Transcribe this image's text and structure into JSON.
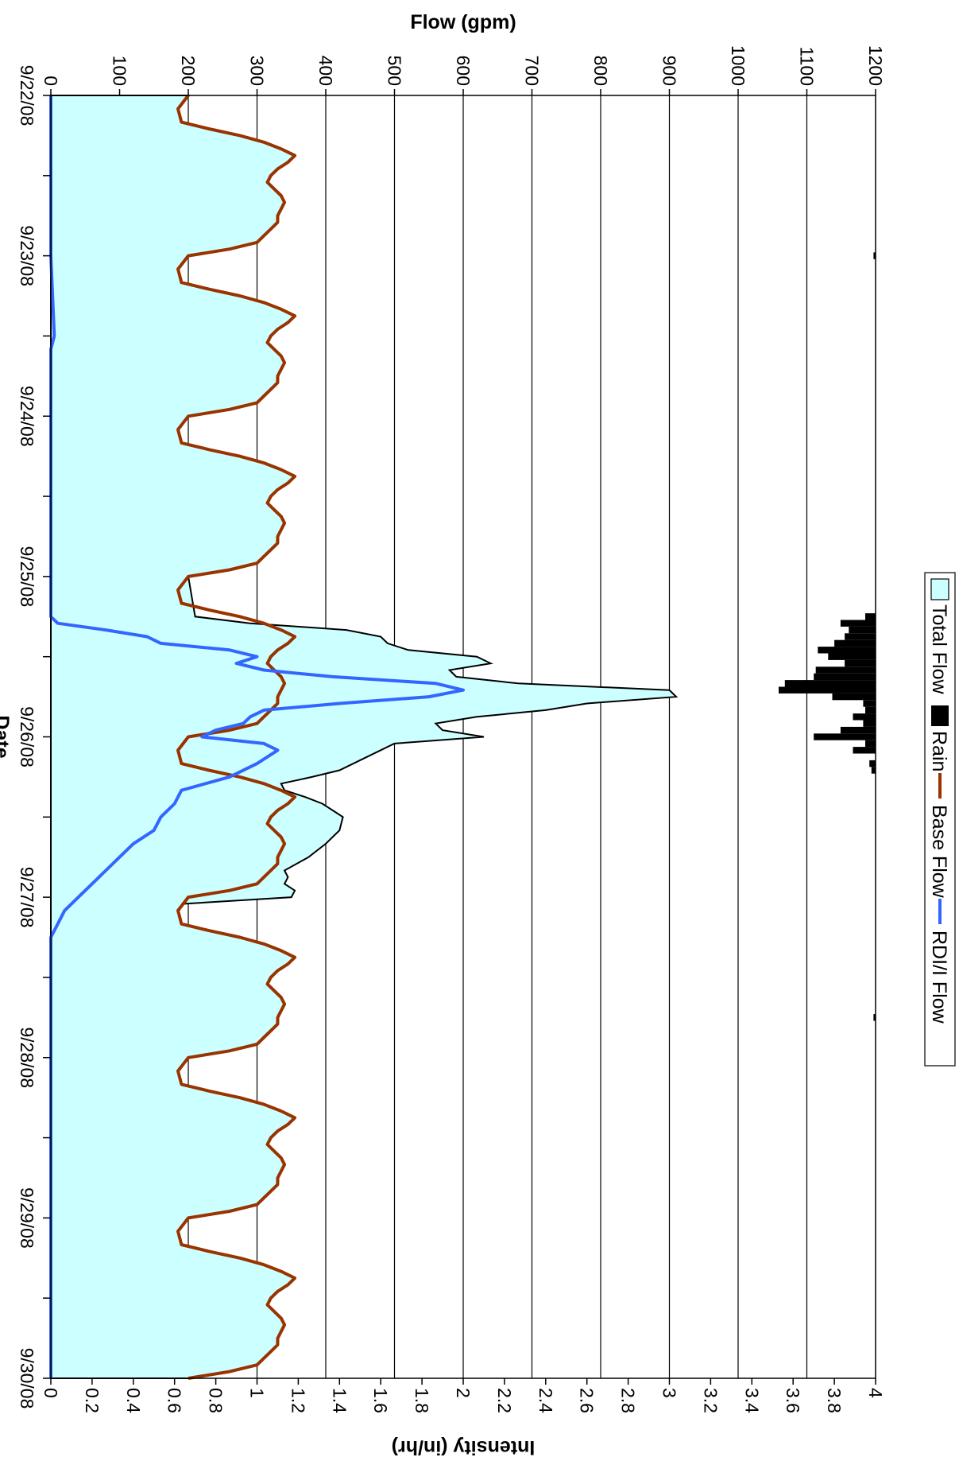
{
  "chart_data": {
    "type": "area",
    "xlabel": "Date",
    "ylabel": "Flow (gpm)",
    "y2label": "Intensity (in/hr)",
    "x_range": [
      "9/22/08",
      "9/30/08"
    ],
    "x_ticks": [
      "9/22/08",
      "9/23/08",
      "9/24/08",
      "9/25/08",
      "9/26/08",
      "9/27/08",
      "9/28/08",
      "9/29/08",
      "9/30/08"
    ],
    "ylim": [
      0,
      1200
    ],
    "y_ticks": [
      0,
      100,
      200,
      300,
      400,
      500,
      600,
      700,
      800,
      900,
      1000,
      1100,
      1200
    ],
    "y2lim": [
      0,
      4
    ],
    "y2_ticks": [
      "0",
      "0.2",
      "0.4",
      "0.6",
      "0.8",
      "1",
      "1.2",
      "1.4",
      "1.6",
      "1.8",
      "2",
      "2.2",
      "2.4",
      "2.6",
      "2.8",
      "3",
      "3.2",
      "3.4",
      "3.6",
      "3.8",
      "4"
    ],
    "grid": "horizontal",
    "legend_position": "top",
    "legend": [
      "Total Flow",
      "Rain",
      "Base Flow",
      "RDI/I Flow"
    ],
    "colors": {
      "total_fill": "#ccffff",
      "total_line": "#000000",
      "rain": "#000000",
      "base": "#993300",
      "rdii": "#3366ff",
      "grid": "#000000"
    },
    "base_flow_daily_profile": {
      "hours": [
        0,
        2,
        4,
        5,
        6,
        7,
        8,
        9,
        10,
        11,
        12,
        13,
        14,
        15,
        16,
        17,
        18,
        19,
        20,
        21,
        22,
        23,
        24
      ],
      "values": [
        200,
        185,
        190,
        230,
        275,
        310,
        335,
        355,
        345,
        330,
        320,
        315,
        325,
        335,
        340,
        335,
        330,
        330,
        320,
        310,
        300,
        260,
        200
      ]
    },
    "series": [
      {
        "name": "Total Flow",
        "x": [
          "9/25/08 00:00",
          "9/25/08 06:00",
          "9/25/08 07:00",
          "9/25/08 08:00",
          "9/25/08 09:00",
          "9/25/08 10:00",
          "9/25/08 11:00",
          "9/25/08 12:00",
          "9/25/08 13:00",
          "9/25/08 14:00",
          "9/25/08 15:00",
          "9/25/08 16:00",
          "9/25/08 17:00",
          "9/25/08 18:00",
          "9/25/08 19:00",
          "9/25/08 20:00",
          "9/25/08 21:00",
          "9/25/08 22:00",
          "9/25/08 23:00",
          "9/26/08 00:00",
          "9/26/08 01:00",
          "9/26/08 03:00",
          "9/26/08 05:00",
          "9/26/08 06:00",
          "9/26/08 07:00",
          "9/26/08 08:00",
          "9/26/08 09:00",
          "9/26/08 10:00",
          "9/26/08 11:00",
          "9/26/08 12:00",
          "9/26/08 14:00",
          "9/26/08 16:00",
          "9/26/08 18:00",
          "9/26/08 20:00",
          "9/26/08 21:00",
          "9/26/08 22:00",
          "9/26/08 23:00",
          "9/27/08 00:00"
        ],
        "values": [
          200,
          210,
          290,
          430,
          480,
          490,
          520,
          620,
          640,
          580,
          590,
          680,
          900,
          910,
          780,
          720,
          620,
          560,
          570,
          630,
          500,
          460,
          420,
          380,
          335,
          340,
          370,
          395,
          410,
          425,
          420,
          400,
          375,
          340,
          345,
          340,
          355,
          350
        ]
      },
      {
        "name": "RDI/I Flow",
        "x": [
          "9/22/08 00:00",
          "9/23/08 00:00",
          "9/23/08 12:00",
          "9/23/08 14:00",
          "9/25/08 06:00",
          "9/25/08 07:00",
          "9/25/08 08:00",
          "9/25/08 09:00",
          "9/25/08 10:00",
          "9/25/08 11:00",
          "9/25/08 12:00",
          "9/25/08 13:00",
          "9/25/08 14:00",
          "9/25/08 15:00",
          "9/25/08 16:00",
          "9/25/08 17:00",
          "9/25/08 18:00",
          "9/25/08 19:00",
          "9/25/08 20:00",
          "9/25/08 21:00",
          "9/25/08 22:00",
          "9/25/08 23:00",
          "9/26/08 00:00",
          "9/26/08 01:00",
          "9/26/08 02:00",
          "9/26/08 04:00",
          "9/26/08 06:00",
          "9/26/08 08:00",
          "9/26/08 10:00",
          "9/26/08 12:00",
          "9/26/08 14:00",
          "9/26/08 16:00",
          "9/26/08 18:00",
          "9/26/08 20:00",
          "9/26/08 22:00",
          "9/27/08 00:00",
          "9/27/08 02:00",
          "9/27/08 04:00",
          "9/27/08 06:00",
          "9/27/08 12:00",
          "9/30/08 00:00"
        ],
        "values": [
          0,
          0,
          5,
          0,
          0,
          10,
          80,
          140,
          160,
          260,
          300,
          270,
          310,
          410,
          560,
          600,
          550,
          420,
          310,
          290,
          280,
          240,
          220,
          310,
          330,
          300,
          260,
          190,
          180,
          160,
          150,
          120,
          100,
          80,
          60,
          40,
          20,
          10,
          0,
          0,
          0
        ]
      },
      {
        "name": "Rain",
        "x": [
          "9/23/08 00:00",
          "9/25/08 06:00",
          "9/25/08 07:00",
          "9/25/08 08:00",
          "9/25/08 09:00",
          "9/25/08 10:00",
          "9/25/08 11:00",
          "9/25/08 12:00",
          "9/25/08 13:00",
          "9/25/08 14:00",
          "9/25/08 15:00",
          "9/25/08 16:00",
          "9/25/08 17:00",
          "9/25/08 18:00",
          "9/25/08 19:00",
          "9/25/08 20:00",
          "9/25/08 21:00",
          "9/25/08 22:00",
          "9/25/08 23:00",
          "9/26/08 00:00",
          "9/26/08 01:00",
          "9/26/08 02:00",
          "9/26/08 04:00",
          "9/26/08 05:00",
          "9/27/08 18:00"
        ],
        "values": [
          0.01,
          0.05,
          0.17,
          0.13,
          0.15,
          0.2,
          0.28,
          0.23,
          0.15,
          0.29,
          0.3,
          0.44,
          0.47,
          0.21,
          0.06,
          0.05,
          0.11,
          0.06,
          0.17,
          0.3,
          0.05,
          0.11,
          0.03,
          0.02,
          0.01
        ]
      }
    ]
  }
}
